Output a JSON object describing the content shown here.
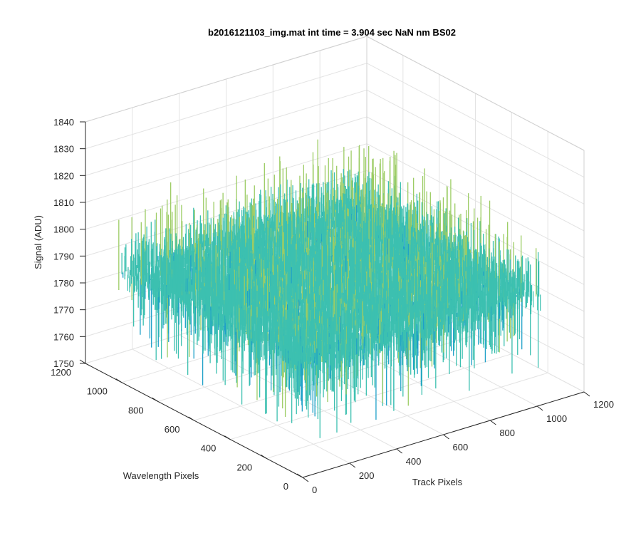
{
  "chart_data": {
    "type": "surface",
    "title": "b2016121103_img.mat int time = 3.904 sec  NaN nm BS02",
    "xlabel": "Track Pixels",
    "ylabel": "Wavelength Pixels",
    "zlabel": "Signal (ADU)",
    "xlim": [
      0,
      1200
    ],
    "ylim": [
      0,
      1200
    ],
    "zlim": [
      1750,
      1840
    ],
    "xticks": [
      0,
      200,
      400,
      600,
      800,
      1000,
      1200
    ],
    "yticks": [
      0,
      200,
      400,
      600,
      800,
      1000,
      1200
    ],
    "zticks": [
      1750,
      1760,
      1770,
      1780,
      1790,
      1800,
      1810,
      1820,
      1830,
      1840
    ],
    "surface": {
      "x_extent": [
        0,
        1024
      ],
      "y_extent": [
        0,
        1024
      ],
      "mean_signal": 1790,
      "noise_min": 1762,
      "noise_max": 1838,
      "colormap": [
        "#0072bd",
        "#1ea0c8",
        "#3cc0b0",
        "#9ccc64",
        "#e6c83c"
      ]
    },
    "grid": true,
    "box": true
  }
}
